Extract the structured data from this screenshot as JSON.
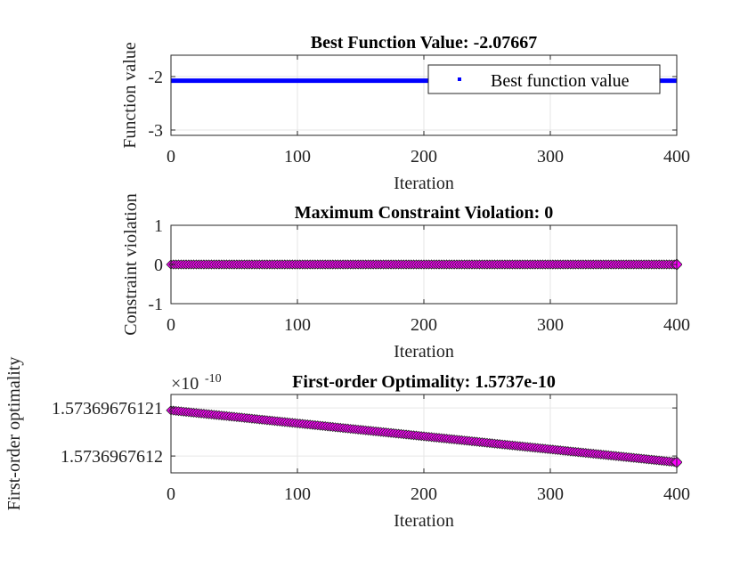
{
  "chart_data": [
    {
      "type": "line",
      "title": "Best Function Value: -2.07667",
      "xlabel": "Iteration",
      "ylabel": "Function value",
      "xlim": [
        0,
        400
      ],
      "ylim": [
        -3.1,
        -1.6
      ],
      "xticks": [
        "0",
        "100",
        "200",
        "300",
        "400"
      ],
      "xtick_values": [
        0,
        100,
        200,
        300,
        400
      ],
      "yticks": [
        "-2",
        "-3"
      ],
      "ytick_values": [
        -2,
        -3
      ],
      "grid": true,
      "legend": {
        "entries": [
          "Best function value"
        ],
        "placement": "top-right"
      },
      "series": [
        {
          "name": "Best function value",
          "color": "#0000ff",
          "marker": "point",
          "x_start": 0,
          "x_end": 400,
          "y_start": -2.07667,
          "y_end": -2.07667
        }
      ]
    },
    {
      "type": "scatter",
      "title": "Maximum Constraint Violation: 0",
      "xlabel": "Iteration",
      "ylabel": "Constraint violation",
      "xlim": [
        0,
        400
      ],
      "ylim": [
        -1,
        1
      ],
      "xticks": [
        "0",
        "100",
        "200",
        "300",
        "400"
      ],
      "xtick_values": [
        0,
        100,
        200,
        300,
        400
      ],
      "yticks": [
        "1",
        "0",
        "-1"
      ],
      "ytick_values": [
        1,
        0,
        -1
      ],
      "grid": true,
      "series": [
        {
          "color": "#ff00ff",
          "marker": "diamond",
          "x_start": 0,
          "x_end": 400,
          "y_start": 0,
          "y_end": 0
        }
      ]
    },
    {
      "type": "scatter",
      "title": "First-order Optimality: 1.5737e-10",
      "xlabel": "Iteration",
      "ylabel": "First-order optimality",
      "xlim": [
        0,
        400
      ],
      "ylim": [
        1.5736967611965,
        1.5736967612128
      ],
      "exponent_label": "×10",
      "exponent_power": "-10",
      "xticks": [
        "0",
        "100",
        "200",
        "300",
        "400"
      ],
      "xtick_values": [
        0,
        100,
        200,
        300,
        400
      ],
      "yticks": [
        "1.57369676121",
        "1.5736967612"
      ],
      "ytick_values": [
        1.57369676121,
        1.5736967612
      ],
      "grid": true,
      "series": [
        {
          "color": "#ff00ff",
          "marker": "diamond",
          "x_start": 0,
          "x_end": 400,
          "y_start": 1.5736967612095,
          "y_end": 1.5736967611987
        }
      ]
    }
  ]
}
